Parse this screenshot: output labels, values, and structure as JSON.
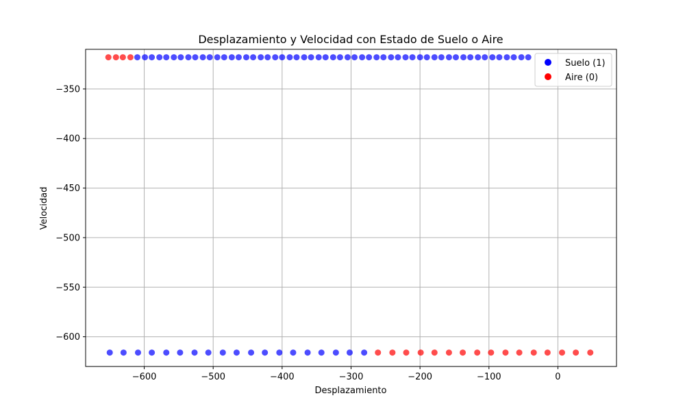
{
  "chart_data": {
    "type": "scatter",
    "title": "Desplazamiento y Velocidad con Estado de Suelo o Aire",
    "xlabel": "Desplazamiento",
    "ylabel": "Velocidad",
    "xlim": [
      -685,
      85
    ],
    "ylim": [
      -630,
      -310
    ],
    "xticks": [
      -600,
      -500,
      -400,
      -300,
      -200,
      -100,
      0
    ],
    "yticks": [
      -350,
      -400,
      -450,
      -500,
      -550,
      -600
    ],
    "xtick_labels": [
      "−600",
      "−500",
      "−400",
      "−300",
      "−200",
      "−100",
      "0"
    ],
    "ytick_labels": [
      "−350",
      "−400",
      "−450",
      "−500",
      "−550",
      "−600"
    ],
    "grid": true,
    "legend_position": "top-right",
    "series": [
      {
        "name": "Suelo (1)",
        "color": "#0000ff",
        "points": [
          {
            "x": -610,
            "y": -318
          },
          {
            "x": -599,
            "y": -318
          },
          {
            "x": -589,
            "y": -318
          },
          {
            "x": -578,
            "y": -318
          },
          {
            "x": -568,
            "y": -318
          },
          {
            "x": -557,
            "y": -318
          },
          {
            "x": -547,
            "y": -318
          },
          {
            "x": -536,
            "y": -318
          },
          {
            "x": -526,
            "y": -318
          },
          {
            "x": -515,
            "y": -318
          },
          {
            "x": -505,
            "y": -318
          },
          {
            "x": -494,
            "y": -318
          },
          {
            "x": -484,
            "y": -318
          },
          {
            "x": -473,
            "y": -318
          },
          {
            "x": -463,
            "y": -318
          },
          {
            "x": -452,
            "y": -318
          },
          {
            "x": -442,
            "y": -318
          },
          {
            "x": -431,
            "y": -318
          },
          {
            "x": -421,
            "y": -318
          },
          {
            "x": -410,
            "y": -318
          },
          {
            "x": -400,
            "y": -318
          },
          {
            "x": -389,
            "y": -318
          },
          {
            "x": -379,
            "y": -318
          },
          {
            "x": -368,
            "y": -318
          },
          {
            "x": -358,
            "y": -318
          },
          {
            "x": -347,
            "y": -318
          },
          {
            "x": -337,
            "y": -318
          },
          {
            "x": -326,
            "y": -318
          },
          {
            "x": -316,
            "y": -318
          },
          {
            "x": -305,
            "y": -318
          },
          {
            "x": -295,
            "y": -318
          },
          {
            "x": -284,
            "y": -318
          },
          {
            "x": -274,
            "y": -318
          },
          {
            "x": -263,
            "y": -318
          },
          {
            "x": -253,
            "y": -318
          },
          {
            "x": -242,
            "y": -318
          },
          {
            "x": -232,
            "y": -318
          },
          {
            "x": -221,
            "y": -318
          },
          {
            "x": -211,
            "y": -318
          },
          {
            "x": -200,
            "y": -318
          },
          {
            "x": -190,
            "y": -318
          },
          {
            "x": -179,
            "y": -318
          },
          {
            "x": -169,
            "y": -318
          },
          {
            "x": -158,
            "y": -318
          },
          {
            "x": -148,
            "y": -318
          },
          {
            "x": -137,
            "y": -318
          },
          {
            "x": -127,
            "y": -318
          },
          {
            "x": -116,
            "y": -318
          },
          {
            "x": -106,
            "y": -318
          },
          {
            "x": -95,
            "y": -318
          },
          {
            "x": -85,
            "y": -318
          },
          {
            "x": -74,
            "y": -318
          },
          {
            "x": -64,
            "y": -318
          },
          {
            "x": -53,
            "y": -318
          },
          {
            "x": -43,
            "y": -318
          },
          {
            "x": -650,
            "y": -616
          },
          {
            "x": -630,
            "y": -616
          },
          {
            "x": -609,
            "y": -616
          },
          {
            "x": -589,
            "y": -616
          },
          {
            "x": -568,
            "y": -616
          },
          {
            "x": -548,
            "y": -616
          },
          {
            "x": -527,
            "y": -616
          },
          {
            "x": -507,
            "y": -616
          },
          {
            "x": -486,
            "y": -616
          },
          {
            "x": -466,
            "y": -616
          },
          {
            "x": -445,
            "y": -616
          },
          {
            "x": -425,
            "y": -616
          },
          {
            "x": -404,
            "y": -616
          },
          {
            "x": -384,
            "y": -616
          },
          {
            "x": -363,
            "y": -616
          },
          {
            "x": -343,
            "y": -616
          },
          {
            "x": -322,
            "y": -616
          },
          {
            "x": -302,
            "y": -616
          },
          {
            "x": -281,
            "y": -616
          }
        ]
      },
      {
        "name": "Aire (0)",
        "color": "#ff0000",
        "points": [
          {
            "x": -652,
            "y": -318
          },
          {
            "x": -641,
            "y": -318
          },
          {
            "x": -631,
            "y": -318
          },
          {
            "x": -620,
            "y": -318
          },
          {
            "x": -261,
            "y": -616
          },
          {
            "x": -240,
            "y": -616
          },
          {
            "x": -220,
            "y": -616
          },
          {
            "x": -199,
            "y": -616
          },
          {
            "x": -179,
            "y": -616
          },
          {
            "x": -158,
            "y": -616
          },
          {
            "x": -138,
            "y": -616
          },
          {
            "x": -117,
            "y": -616
          },
          {
            "x": -97,
            "y": -616
          },
          {
            "x": -76,
            "y": -616
          },
          {
            "x": -56,
            "y": -616
          },
          {
            "x": -35,
            "y": -616
          },
          {
            "x": -15,
            "y": -616
          },
          {
            "x": 6,
            "y": -616
          },
          {
            "x": 26,
            "y": -616
          },
          {
            "x": 47,
            "y": -616
          }
        ]
      }
    ]
  }
}
